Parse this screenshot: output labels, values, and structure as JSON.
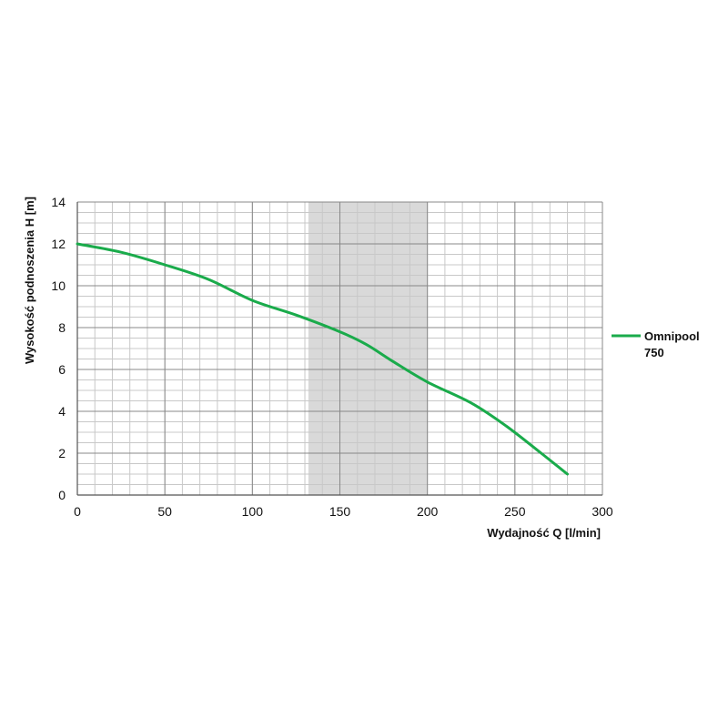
{
  "chart_data": {
    "type": "line",
    "title": "",
    "xlabel": "Wydajność Q [l/min]",
    "ylabel": "Wysokość podnoszenia H [m]",
    "xlim": [
      0,
      300
    ],
    "ylim": [
      0,
      14
    ],
    "x_ticks": [
      "0",
      "50",
      "100",
      "150",
      "200",
      "250",
      "300"
    ],
    "y_ticks": [
      "0",
      "2",
      "4",
      "6",
      "8",
      "10",
      "12",
      "14"
    ],
    "grid": true,
    "highlight_band": {
      "x_from": 132,
      "x_to": 200,
      "color": "#d9d9d9"
    },
    "legend": {
      "placement": "right",
      "label_lines": [
        "Omnipool",
        "750"
      ]
    },
    "series": [
      {
        "name": "Omnipool 750",
        "color": "#1aab4b",
        "x": [
          0,
          25,
          50,
          75,
          100,
          125,
          150,
          165,
          180,
          200,
          225,
          245,
          265,
          280
        ],
        "y": [
          12.0,
          11.6,
          11.0,
          10.3,
          9.3,
          8.6,
          7.8,
          7.2,
          6.4,
          5.4,
          4.4,
          3.3,
          2.0,
          1.0
        ]
      }
    ]
  }
}
